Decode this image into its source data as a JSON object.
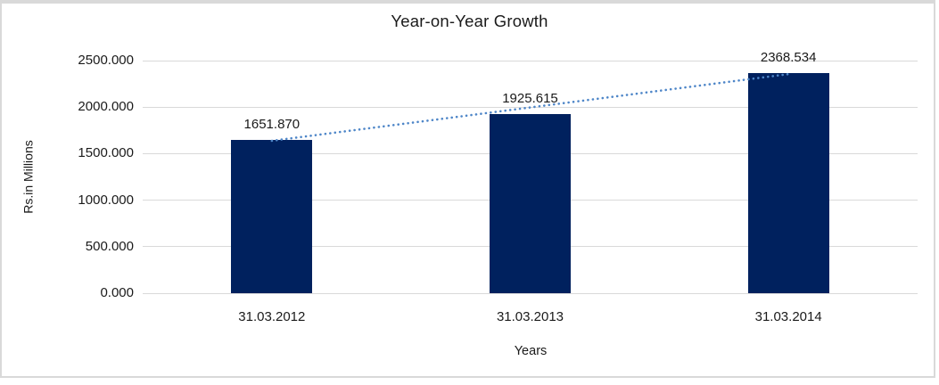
{
  "page": {
    "background": "#ffffff",
    "frame_border_color": "#d9d9d9"
  },
  "chart_data": {
    "type": "bar",
    "title": "Year-on-Year Growth",
    "xlabel": "Years",
    "ylabel": "Rs.in Millions",
    "categories": [
      "31.03.2012",
      "31.03.2013",
      "31.03.2014"
    ],
    "values": [
      1651.87,
      1925.615,
      2368.534
    ],
    "data_labels": [
      "1651.870",
      "1925.615",
      "2368.534"
    ],
    "ylim": [
      0,
      2500
    ],
    "ytick_interval": 500,
    "ytick_labels": [
      "0.000",
      "500.000",
      "1000.000",
      "1500.000",
      "2000.000",
      "2500.000"
    ],
    "grid": true,
    "legend": false,
    "bar_color": "#00215e",
    "gridline_color": "#d9d9d9",
    "trendline": {
      "kind": "linear",
      "style": "dotted",
      "color": "#4e86c8"
    }
  }
}
